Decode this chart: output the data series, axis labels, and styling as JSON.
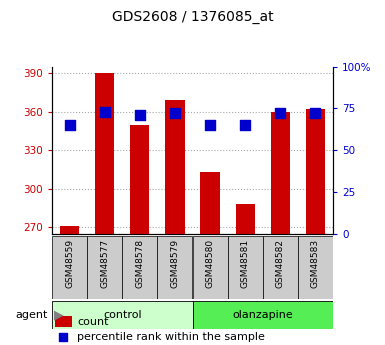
{
  "title": "GDS2608 / 1376085_at",
  "samples": [
    "GSM48559",
    "GSM48577",
    "GSM48578",
    "GSM48579",
    "GSM48580",
    "GSM48581",
    "GSM48582",
    "GSM48583"
  ],
  "counts": [
    271,
    390,
    350,
    369,
    313,
    288,
    360,
    362
  ],
  "percentile_ranks": [
    65,
    73,
    71,
    72,
    65,
    65,
    72,
    72
  ],
  "groups": [
    {
      "label": "control",
      "indices": [
        0,
        1,
        2,
        3
      ],
      "color": "#ccffcc"
    },
    {
      "label": "olanzapine",
      "indices": [
        4,
        5,
        6,
        7
      ],
      "color": "#55ee55"
    }
  ],
  "bar_color": "#cc0000",
  "dot_color": "#0000cc",
  "ymin": 265,
  "ymax": 395,
  "yticks": [
    270,
    300,
    330,
    360,
    390
  ],
  "right_yticks": [
    0,
    25,
    50,
    75,
    100
  ],
  "right_yticklabels": [
    "0",
    "25",
    "50",
    "75",
    "100%"
  ],
  "bar_width": 0.55,
  "dot_size": 45,
  "legend_count_label": "count",
  "legend_percentile_label": "percentile rank within the sample",
  "agent_label": "agent",
  "grid_color": "#000000",
  "grid_alpha": 0.35,
  "sample_bg_color": "#cccccc",
  "control_color": "#ccffcc",
  "olanzapine_color": "#55ee55"
}
